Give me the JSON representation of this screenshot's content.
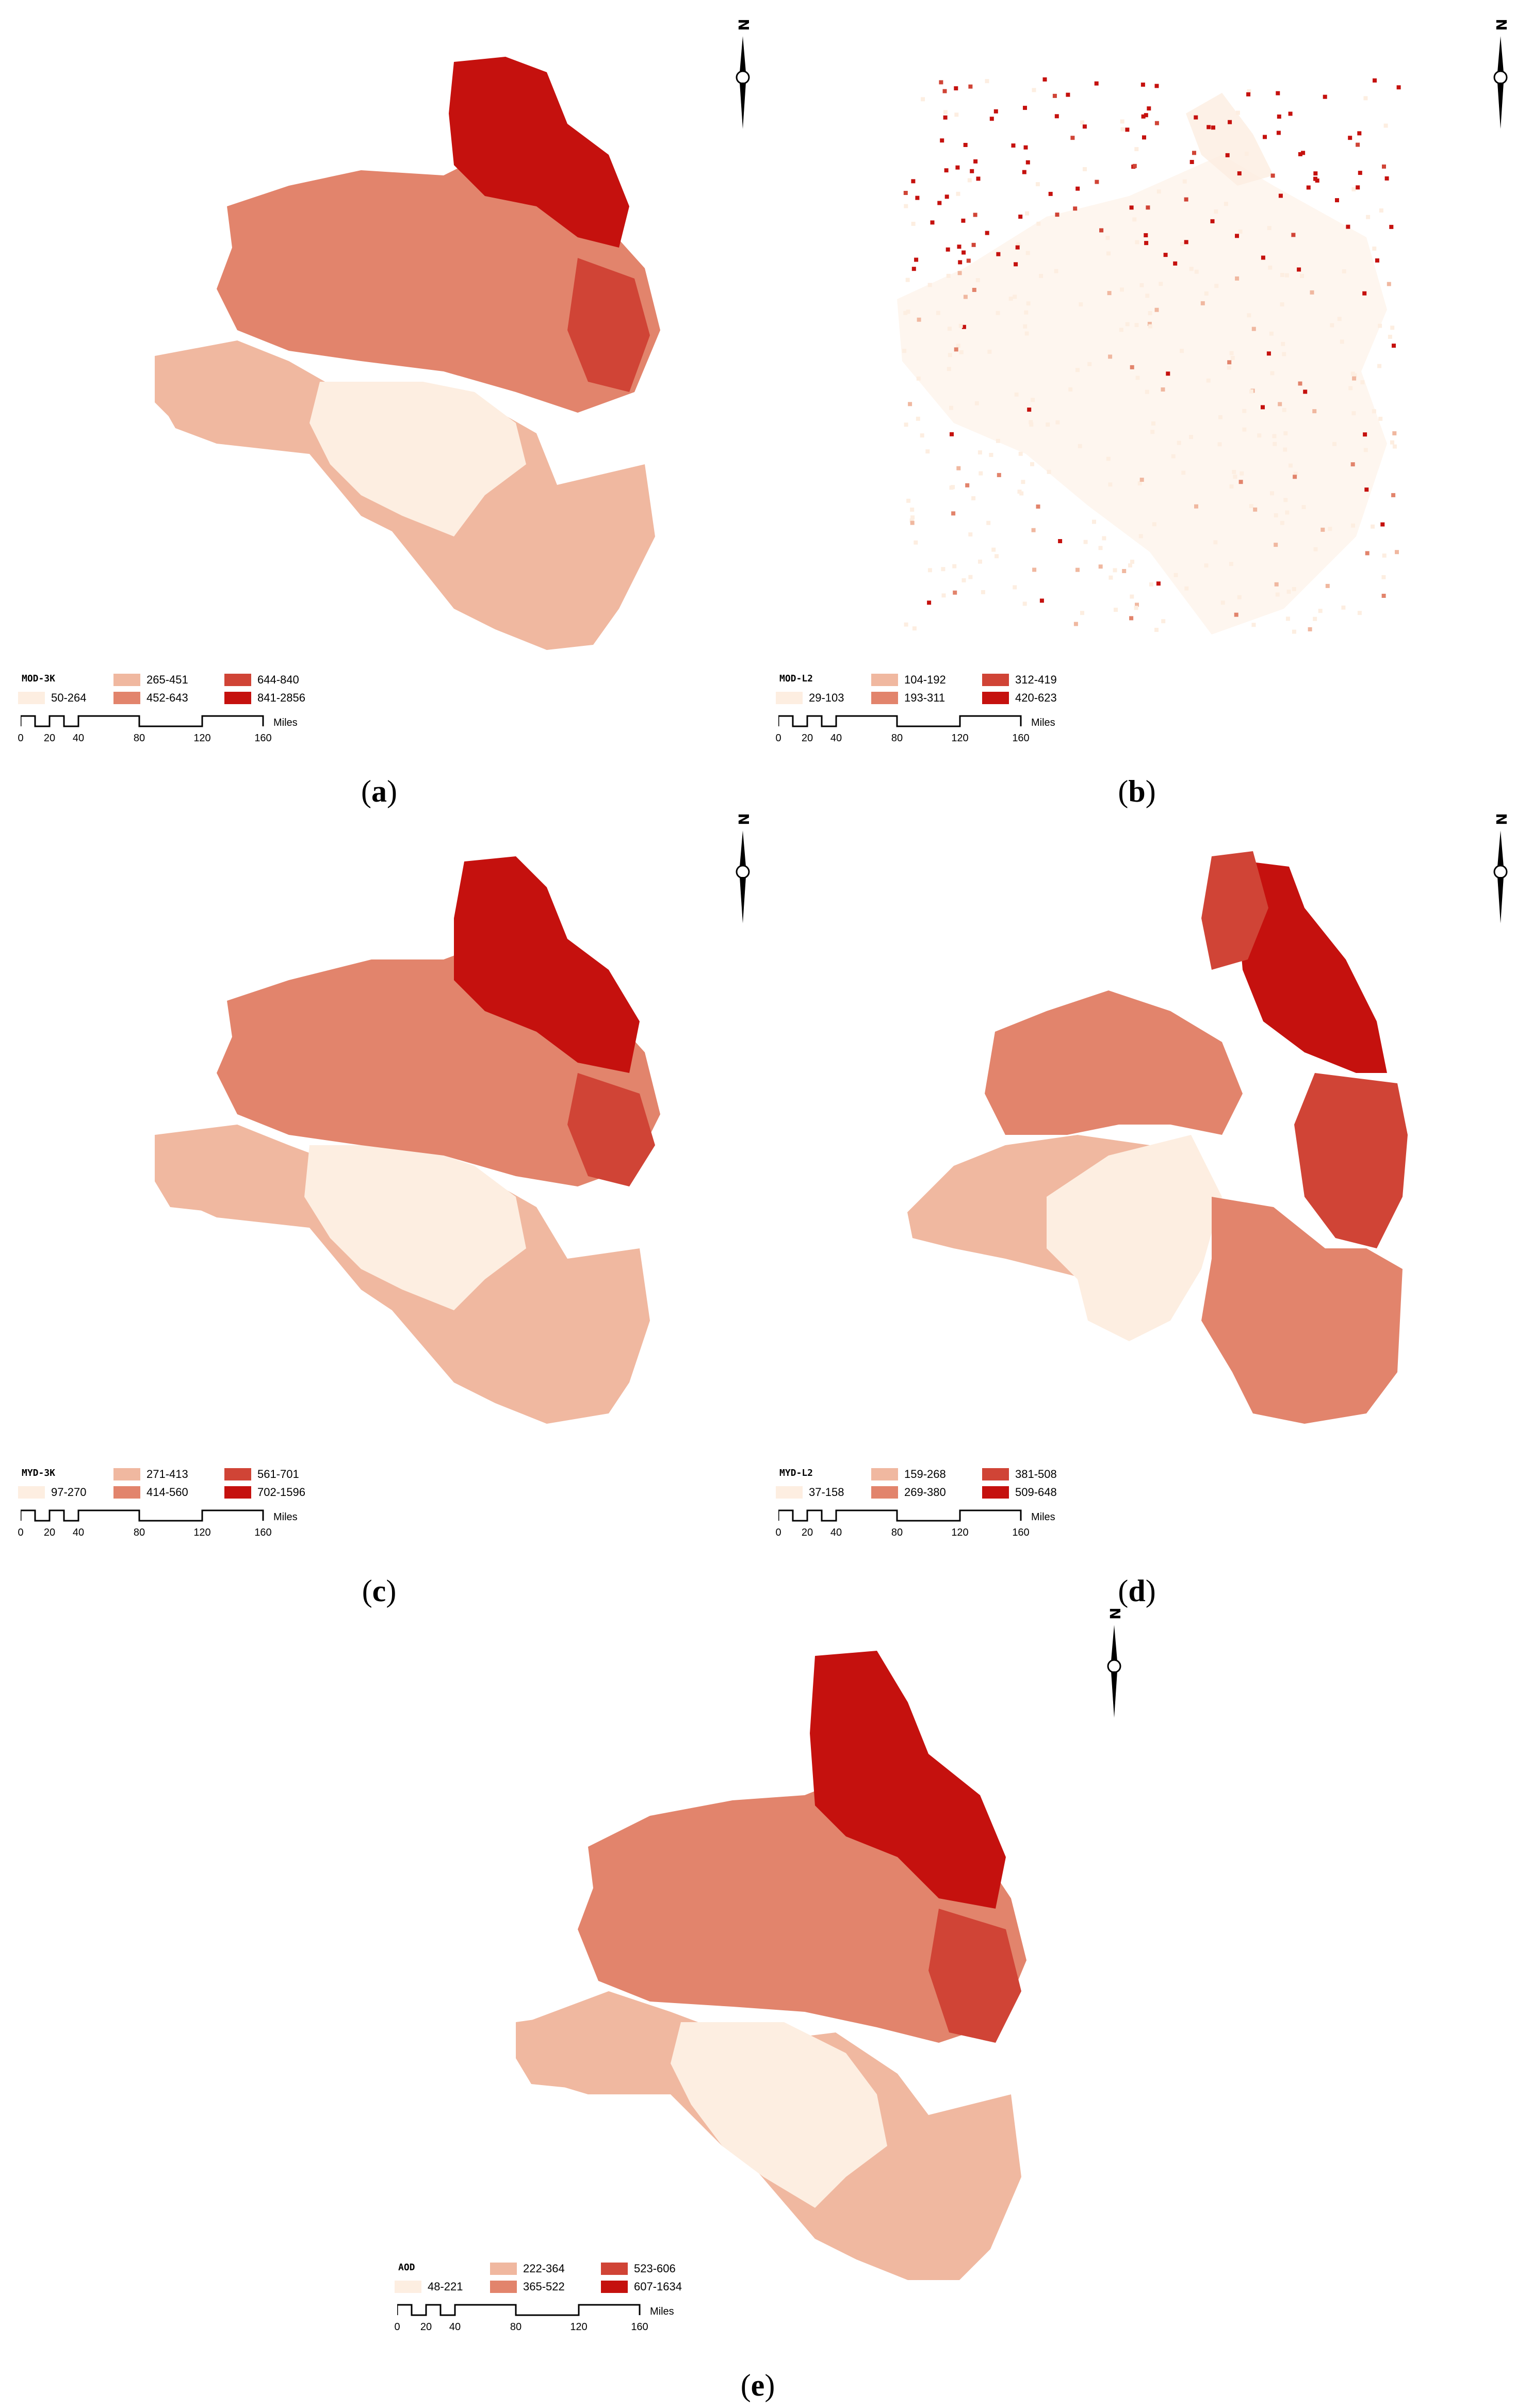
{
  "colors": {
    "class1": "#fdeee1",
    "class2": "#f0b8a0",
    "class3": "#e2846c",
    "class4": "#d04436",
    "class5": "#c5110e"
  },
  "icons": {
    "north_arrow": "north-arrow-icon"
  },
  "scale": {
    "ticks": [
      "0",
      "20",
      "40",
      "80",
      "120",
      "160"
    ],
    "unit": "Miles"
  },
  "panels": [
    {
      "id": "a",
      "legend_title": "MOD-3K",
      "classes": [
        "50-264",
        "265-451",
        "452-643",
        "644-840",
        "841-2856"
      ]
    },
    {
      "id": "b",
      "legend_title": "MOD-L2",
      "classes": [
        "29-103",
        "104-192",
        "193-311",
        "312-419",
        "420-623"
      ]
    },
    {
      "id": "c",
      "legend_title": "MYD-3K",
      "classes": [
        "97-270",
        "271-413",
        "414-560",
        "561-701",
        "702-1596"
      ]
    },
    {
      "id": "d",
      "legend_title": "MYD-L2",
      "classes": [
        "37-158",
        "159-268",
        "269-380",
        "381-508",
        "509-648"
      ]
    },
    {
      "id": "e",
      "legend_title": "AOD",
      "classes": [
        "48-221",
        "222-364",
        "365-522",
        "523-606",
        "607-1634"
      ]
    }
  ],
  "captions": [
    "a",
    "b",
    "c",
    "d",
    "e"
  ]
}
